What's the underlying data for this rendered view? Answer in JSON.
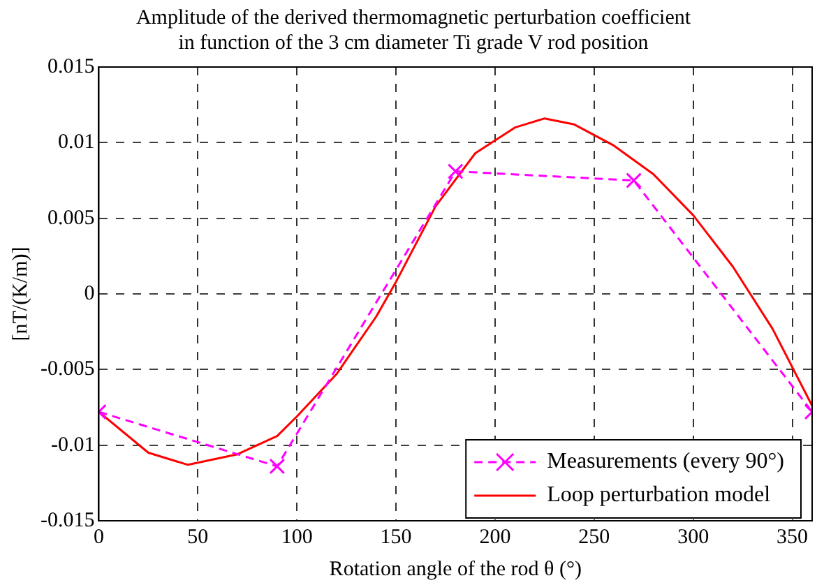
{
  "chart_data": {
    "type": "line",
    "title": "Amplitude of the derived thermomagnetic perturbation coefficient\nin function of the 3 cm diameter Ti grade V rod position",
    "xlabel": "Rotation angle of the rod θ (°)",
    "ylabel": "[nT/(K/m)]",
    "xlim": [
      0,
      360
    ],
    "xticks": [
      0,
      50,
      100,
      150,
      200,
      250,
      300,
      350
    ],
    "ylim": [
      -0.015,
      0.015
    ],
    "yticks": [
      -0.015,
      -0.01,
      -0.005,
      0,
      0.005,
      0.01,
      0.015
    ],
    "grid": true,
    "legend": "bottom right",
    "series": [
      {
        "name": "Measurements (every 90°)",
        "color": "#ff00ff",
        "marker": "cross",
        "line_style": "dashed",
        "x": [
          0,
          90,
          180,
          270,
          360
        ],
        "values": [
          -0.0078,
          -0.0114,
          0.0081,
          0.0075,
          -0.0078
        ]
      },
      {
        "name": "Loop perturbation model",
        "color": "#ff0000",
        "marker": "none",
        "line_style": "solid",
        "x": [
          0,
          25,
          45,
          70,
          90,
          100,
          120,
          140,
          150,
          170,
          190,
          210,
          225,
          240,
          260,
          280,
          300,
          320,
          340,
          360
        ],
        "values": [
          -0.0078,
          -0.0105,
          -0.0113,
          -0.0106,
          -0.0094,
          -0.0081,
          -0.0053,
          -0.0015,
          0.0008,
          0.0058,
          0.0093,
          0.011,
          0.0116,
          0.0112,
          0.0098,
          0.0079,
          0.0052,
          0.0018,
          -0.0023,
          -0.0074
        ]
      }
    ]
  }
}
